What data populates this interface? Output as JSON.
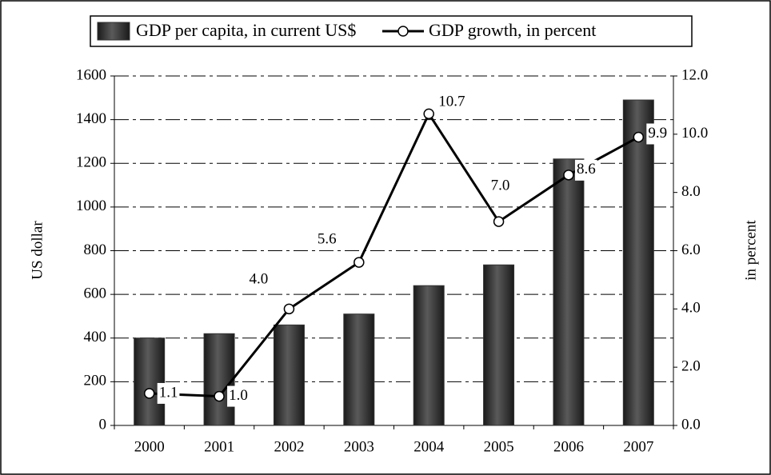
{
  "chart_data": {
    "type": "combo",
    "categories": [
      "2000",
      "2001",
      "2002",
      "2003",
      "2004",
      "2005",
      "2006",
      "2007"
    ],
    "series": [
      {
        "name": "GDP per capita, in current US$",
        "type": "bar",
        "color": "#333333",
        "values": [
          400,
          420,
          460,
          510,
          640,
          735,
          1220,
          1490
        ]
      },
      {
        "name": "GDP growth, in percent",
        "type": "line",
        "axis": "y2",
        "color": "#000000",
        "values": [
          1.1,
          1.0,
          4.0,
          5.6,
          10.7,
          7.0,
          8.6,
          9.9
        ],
        "value_labels": [
          "1.1",
          "1.0",
          "4.0",
          "5.6",
          "10.7",
          "7.0",
          "8.6",
          "9.9"
        ]
      }
    ],
    "ylabel": "US dollar",
    "y2label": "in percent",
    "ylim": [
      0,
      1600
    ],
    "yticks": [
      0,
      200,
      400,
      600,
      800,
      1000,
      1200,
      1400,
      1600
    ],
    "y2lim": [
      0,
      12
    ],
    "y2ticks": [
      {
        "value": 0,
        "label": "0.0"
      },
      {
        "value": 2,
        "label": "2.0"
      },
      {
        "value": 4,
        "label": "4.0"
      },
      {
        "value": 6,
        "label": "6.0"
      },
      {
        "value": 8,
        "label": "8.0"
      },
      {
        "value": 10,
        "label": "10.0"
      },
      {
        "value": 12,
        "label": "12.0"
      }
    ],
    "grid": true,
    "legend": "top"
  }
}
